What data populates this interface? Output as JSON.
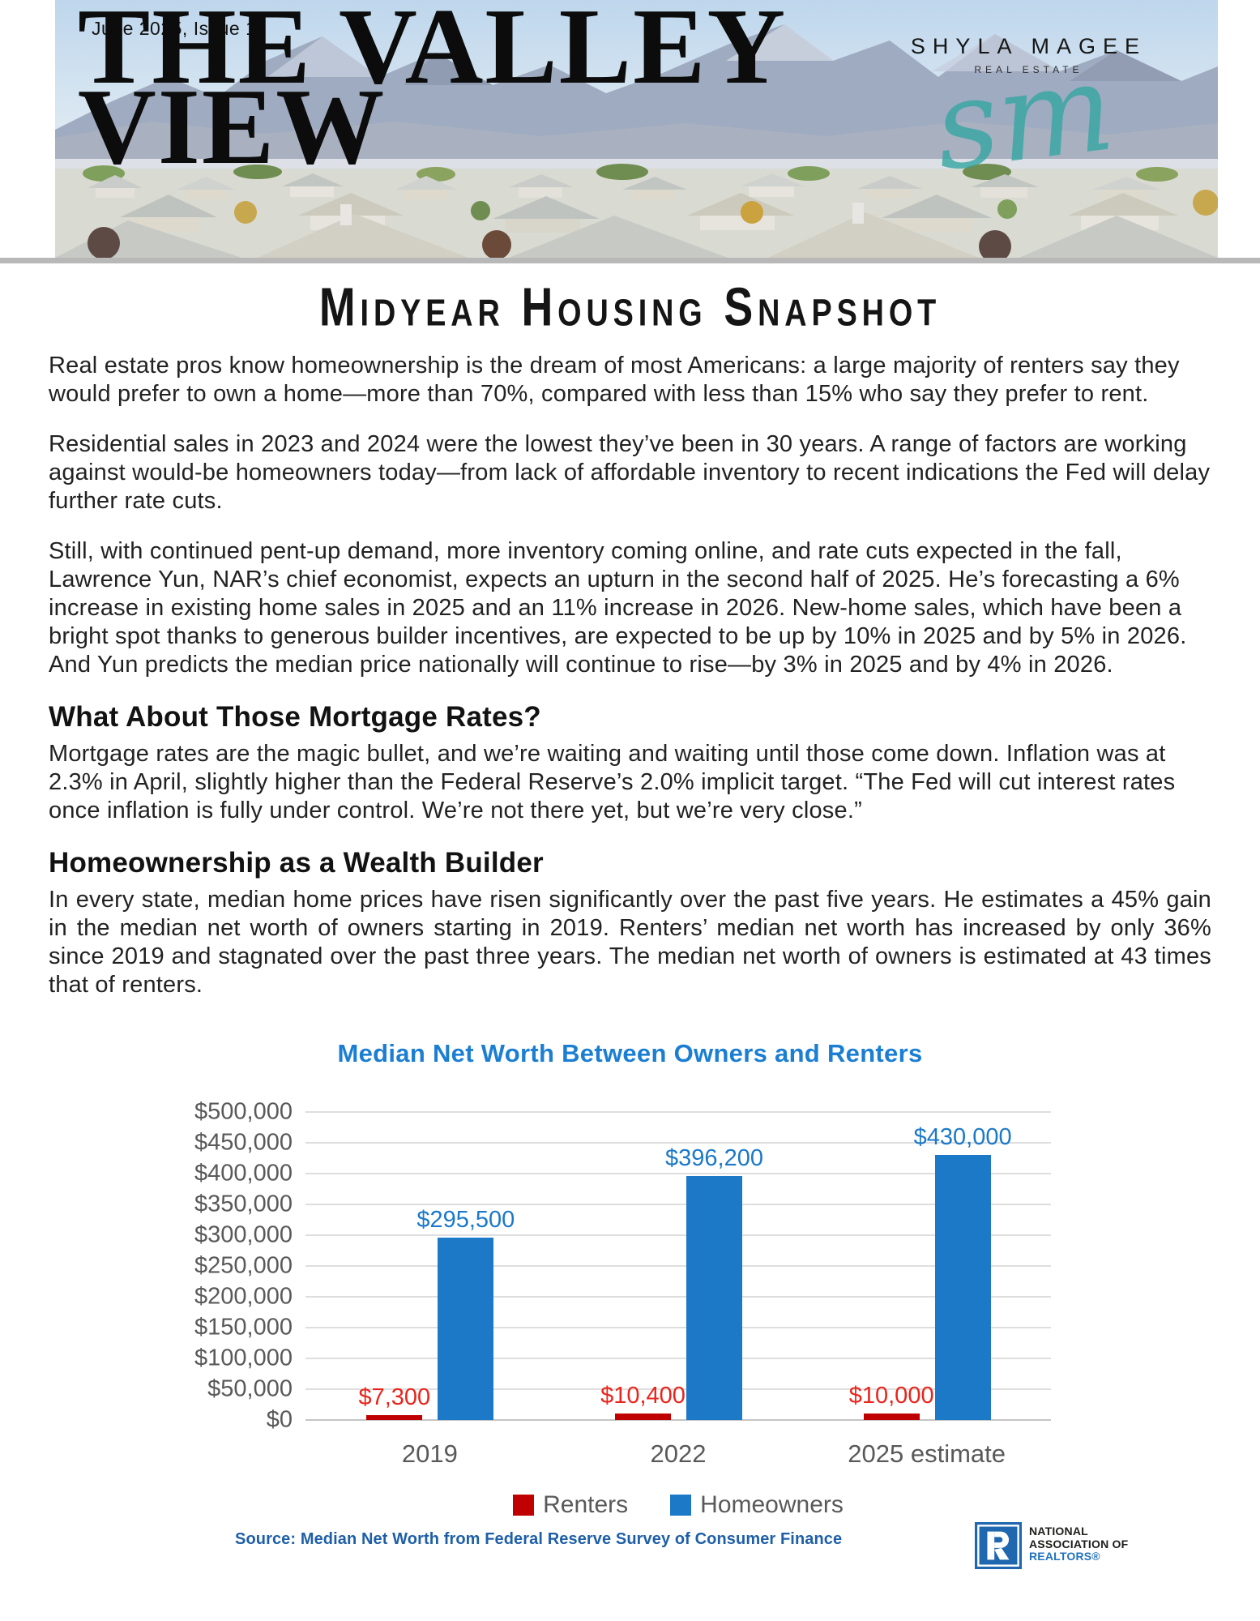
{
  "masthead": {
    "issue": "June 2025, Issue 11",
    "title_line1": "THE VALLEY",
    "title_line2": "VIEW",
    "brand": {
      "name": "SHYLA MAGEE",
      "tagline": "REAL ESTATE",
      "monogram": "sm"
    }
  },
  "article": {
    "headline": "Midyear Housing Snapshot",
    "paragraphs": [
      "Real estate pros know homeownership is the dream of most Americans: a large majority of renters say they would prefer to own a home—more than 70%, compared with less than 15% who say they prefer to rent.",
      "Residential sales in 2023 and 2024 were the lowest they’ve been in 30 years. A range of factors are working against would-be homeowners today—from lack of affordable inventory to recent indications the Fed will delay further rate cuts.",
      "Still, with continued pent-up demand, more inventory coming online, and rate cuts expected in the fall, Lawrence Yun, NAR’s chief economist, expects an upturn in the second half of 2025. He’s forecasting a 6% increase in existing home sales in 2025 and an 11% increase in 2026. New-home sales, which have been a bright spot thanks to generous builder incentives, are expected to be up by 10% in 2025 and by 5% in 2026. And Yun predicts the median price nationally will continue to rise—by 3% in 2025 and by 4% in 2026."
    ],
    "sections": [
      {
        "heading": "What About Those Mortgage Rates?",
        "body": "Mortgage rates are the magic bullet, and we’re waiting and waiting until those come down. Inflation was at 2.3% in April, slightly higher than the Federal Reserve’s 2.0% implicit target. “The Fed will cut interest rates once inflation is fully under control. We’re not there yet, but we’re very close.”"
      },
      {
        "heading": "Homeownership as a Wealth Builder",
        "body": "In every state, median home prices have risen significantly over the past five years. He estimates a 45% gain in the median net worth of owners starting in 2019. Renters’ median net worth has increased by only 36% since 2019 and stagnated over the past three years. The median net worth of owners is estimated at 43 times that of renters."
      }
    ]
  },
  "chart_data": {
    "type": "bar",
    "title": "Median Net Worth Between Owners and Renters",
    "categories": [
      "2019",
      "2022",
      "2025 estimate"
    ],
    "series": [
      {
        "name": "Renters",
        "color": "#c00000",
        "label_color": "#e8251c",
        "values": [
          7300,
          10400,
          10000
        ]
      },
      {
        "name": "Homeowners",
        "color": "#1b79c8",
        "label_color": "#1b79c8",
        "values": [
          295500,
          396200,
          430000
        ]
      }
    ],
    "value_labels": {
      "Renters": [
        "$7,300",
        "$10,400",
        "$10,000"
      ],
      "Homeowners": [
        "$295,500",
        "$396,200",
        "$430,000"
      ]
    },
    "ylim": [
      0,
      500000
    ],
    "ytick_step": 50000,
    "ytick_format": "currency",
    "grid": true,
    "legend_position": "bottom",
    "axis_text_color": "#595959"
  },
  "footer": {
    "source": "Source: Median Net Worth from Federal Reserve Survey of Consumer Finance",
    "nar": {
      "line1": "NATIONAL",
      "line2": "ASSOCIATION OF",
      "line3": "REALTORS®"
    }
  },
  "colors": {
    "chart_title_blue": "#1b7ed3",
    "homeowners_blue": "#1b79c8",
    "renters_red": "#c00000",
    "renters_label_red": "#e8251c",
    "source_blue": "#1e5fa8",
    "monogram_teal": "#35a7a2",
    "separator_gray": "#b8b8b8"
  }
}
